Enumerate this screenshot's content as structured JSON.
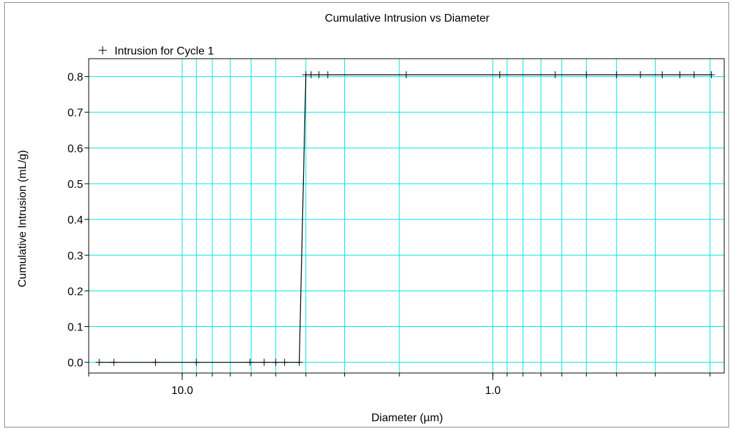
{
  "chart_data": {
    "type": "line",
    "title": "Cumulative Intrusion vs Diameter",
    "xlabel": "Diameter (µm)",
    "ylabel": "Cumulative Intrusion (mL/g)",
    "x_scale": "log",
    "x_reversed": true,
    "xlim": [
      20,
      0.18
    ],
    "ylim": [
      -0.03,
      0.85
    ],
    "x_ticks": [
      {
        "value": 10,
        "label": "10.0"
      },
      {
        "value": 1,
        "label": "1.0"
      }
    ],
    "y_ticks": [
      {
        "value": 0.0,
        "label": "0.0"
      },
      {
        "value": 0.1,
        "label": "0.1"
      },
      {
        "value": 0.2,
        "label": "0.2"
      },
      {
        "value": 0.3,
        "label": "0.3"
      },
      {
        "value": 0.4,
        "label": "0.4"
      },
      {
        "value": 0.5,
        "label": "0.5"
      },
      {
        "value": 0.6,
        "label": "0.6"
      },
      {
        "value": 0.7,
        "label": "0.7"
      },
      {
        "value": 0.8,
        "label": "0.8"
      }
    ],
    "grid": true,
    "grid_color": "#00e5e5",
    "legend_position": "top-left",
    "series": [
      {
        "name": "Intrusion for Cycle 1",
        "marker": "+",
        "color": "#000000",
        "points": [
          {
            "x": 18.5,
            "y": 0.0
          },
          {
            "x": 16.6,
            "y": 0.0
          },
          {
            "x": 12.2,
            "y": 0.0
          },
          {
            "x": 9.0,
            "y": 0.0
          },
          {
            "x": 6.05,
            "y": 0.0
          },
          {
            "x": 5.45,
            "y": 0.0
          },
          {
            "x": 5.0,
            "y": 0.0
          },
          {
            "x": 4.68,
            "y": 0.0
          },
          {
            "x": 4.2,
            "y": 0.0
          },
          {
            "x": 4.0,
            "y": 0.805
          },
          {
            "x": 3.85,
            "y": 0.805
          },
          {
            "x": 3.63,
            "y": 0.805
          },
          {
            "x": 3.4,
            "y": 0.805
          },
          {
            "x": 1.9,
            "y": 0.805
          },
          {
            "x": 0.95,
            "y": 0.805
          },
          {
            "x": 0.63,
            "y": 0.805
          },
          {
            "x": 0.5,
            "y": 0.805
          },
          {
            "x": 0.4,
            "y": 0.805
          },
          {
            "x": 0.335,
            "y": 0.805
          },
          {
            "x": 0.285,
            "y": 0.805
          },
          {
            "x": 0.25,
            "y": 0.805
          },
          {
            "x": 0.225,
            "y": 0.805
          },
          {
            "x": 0.198,
            "y": 0.805
          }
        ]
      }
    ]
  }
}
